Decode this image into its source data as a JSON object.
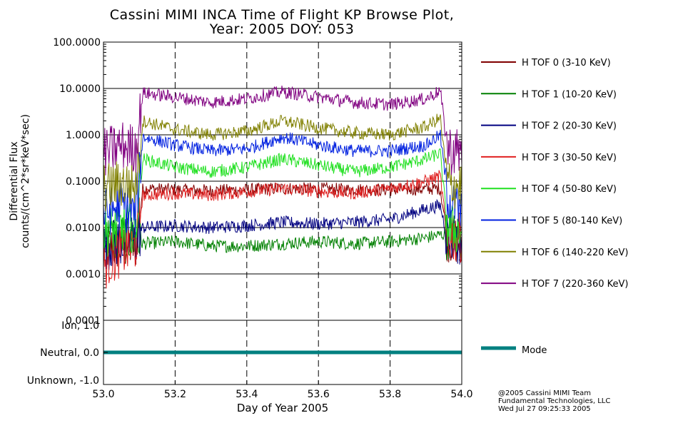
{
  "title_line1": "Cassini MIMI INCA Time of Flight KP Browse Plot,",
  "title_line2": "Year: 2005 DOY: 053",
  "credits": [
    "@2005 Cassini MIMI Team",
    "Fundamental Technologies, LLC",
    "Wed Jul 27 09:25:33 2005"
  ],
  "chart_data": [
    {
      "type": "line",
      "panel": "flux",
      "ylabel": [
        "Differential Flux",
        "counts/(cm^2*sr*keV*sec)"
      ],
      "yscale": "log",
      "ylim": [
        0.0001,
        100
      ],
      "xlim": [
        53.0,
        54.0
      ],
      "ytick_labels": [
        "100.0000",
        "10.0000",
        "1.0000",
        "0.1000",
        "0.0100",
        "0.0010",
        "0.0001"
      ],
      "ytick_values": [
        100,
        10,
        1,
        0.1,
        0.01,
        0.001,
        0.0001
      ],
      "vertical_dashed_x": [
        53.2,
        53.4,
        53.6,
        53.8
      ],
      "legend_position": "right",
      "series": [
        {
          "name": "H TOF 0 (3-10 KeV)",
          "color": "#800000",
          "x": [
            53.0,
            53.05,
            53.09,
            53.11,
            53.2,
            53.3,
            53.4,
            53.5,
            53.6,
            53.7,
            53.8,
            53.9,
            53.94,
            53.96,
            54.0
          ],
          "y": [
            0.0035,
            0.004,
            0.004,
            0.07,
            0.065,
            0.063,
            0.065,
            0.07,
            0.068,
            0.066,
            0.065,
            0.068,
            0.07,
            0.006,
            0.005
          ]
        },
        {
          "name": "H TOF 1 (10-20 KeV)",
          "color": "#008000",
          "x": [
            53.0,
            53.05,
            53.09,
            53.11,
            53.2,
            53.3,
            53.4,
            53.5,
            53.6,
            53.7,
            53.8,
            53.9,
            53.94,
            53.96,
            54.0
          ],
          "y": [
            0.006,
            0.006,
            0.006,
            0.0045,
            0.005,
            0.004,
            0.004,
            0.0045,
            0.005,
            0.0045,
            0.005,
            0.006,
            0.007,
            0.007,
            0.006
          ]
        },
        {
          "name": "H TOF 2 (20-30 KeV)",
          "color": "#000080",
          "x": [
            53.0,
            53.05,
            53.09,
            53.11,
            53.2,
            53.3,
            53.4,
            53.5,
            53.6,
            53.7,
            53.8,
            53.9,
            53.94,
            53.96,
            54.0
          ],
          "y": [
            0.004,
            0.005,
            0.005,
            0.01,
            0.011,
            0.01,
            0.011,
            0.013,
            0.012,
            0.013,
            0.015,
            0.025,
            0.03,
            0.006,
            0.005
          ]
        },
        {
          "name": "H TOF 3 (30-50 KeV)",
          "color": "#e02020",
          "x": [
            53.0,
            53.05,
            53.09,
            53.11,
            53.2,
            53.3,
            53.4,
            53.5,
            53.6,
            53.7,
            53.8,
            53.9,
            53.94,
            53.96,
            54.0
          ],
          "y": [
            0.0015,
            0.003,
            0.004,
            0.05,
            0.055,
            0.05,
            0.06,
            0.07,
            0.06,
            0.055,
            0.07,
            0.1,
            0.13,
            0.006,
            0.006
          ]
        },
        {
          "name": "H TOF 4 (50-80 KeV)",
          "color": "#20e020",
          "x": [
            53.0,
            53.05,
            53.09,
            53.11,
            53.2,
            53.3,
            53.4,
            53.5,
            53.6,
            53.7,
            53.8,
            53.9,
            53.94,
            53.96,
            54.0
          ],
          "y": [
            0.008,
            0.01,
            0.01,
            0.3,
            0.2,
            0.16,
            0.2,
            0.3,
            0.22,
            0.16,
            0.2,
            0.3,
            0.4,
            0.01,
            0.008
          ]
        },
        {
          "name": "H TOF 5 (80-140 KeV)",
          "color": "#0020e0",
          "x": [
            53.0,
            53.05,
            53.09,
            53.11,
            53.2,
            53.3,
            53.4,
            53.5,
            53.6,
            53.7,
            53.8,
            53.9,
            53.94,
            53.96,
            54.0
          ],
          "y": [
            0.02,
            0.03,
            0.02,
            0.9,
            0.6,
            0.45,
            0.5,
            0.9,
            0.6,
            0.45,
            0.45,
            0.6,
            1.0,
            0.05,
            0.02
          ]
        },
        {
          "name": "H TOF 6 (140-220 KeV)",
          "color": "#808000",
          "x": [
            53.0,
            53.05,
            53.09,
            53.11,
            53.2,
            53.3,
            53.4,
            53.5,
            53.6,
            53.7,
            53.8,
            53.9,
            53.94,
            53.96,
            54.0
          ],
          "y": [
            0.07,
            0.09,
            0.08,
            2.0,
            1.3,
            1.0,
            1.2,
            2.0,
            1.4,
            1.1,
            1.0,
            1.5,
            2.3,
            0.09,
            0.08
          ]
        },
        {
          "name": "H TOF 7 (220-360 KeV)",
          "color": "#800080",
          "x": [
            53.0,
            53.05,
            53.09,
            53.11,
            53.2,
            53.3,
            53.4,
            53.5,
            53.6,
            53.7,
            53.8,
            53.9,
            53.94,
            53.96,
            54.0
          ],
          "y": [
            0.4,
            0.6,
            0.5,
            8.0,
            6.5,
            5.0,
            6.0,
            8.5,
            6.5,
            5.0,
            4.5,
            6.0,
            9.0,
            0.5,
            0.4
          ]
        }
      ]
    },
    {
      "type": "line",
      "panel": "mode",
      "ylim": [
        -1.0,
        1.0
      ],
      "xlim": [
        53.0,
        54.0
      ],
      "ytick_labels": [
        "Ion, 1.0",
        "Neutral, 0.0",
        "Unknown, -1.0"
      ],
      "ytick_values": [
        1.0,
        0.0,
        -1.0
      ],
      "xtick_labels": [
        "53.0",
        "53.2",
        "53.4",
        "53.6",
        "53.8",
        "54.0"
      ],
      "xtick_values": [
        53.0,
        53.2,
        53.4,
        53.6,
        53.8,
        54.0
      ],
      "xlabel": "Day of Year 2005",
      "vertical_dashed_x": [
        53.2,
        53.4,
        53.6,
        53.8
      ],
      "series": [
        {
          "name": "Mode",
          "color": "#008080",
          "x": [
            53.0,
            54.0
          ],
          "y": [
            0.0,
            0.0
          ]
        }
      ]
    }
  ]
}
